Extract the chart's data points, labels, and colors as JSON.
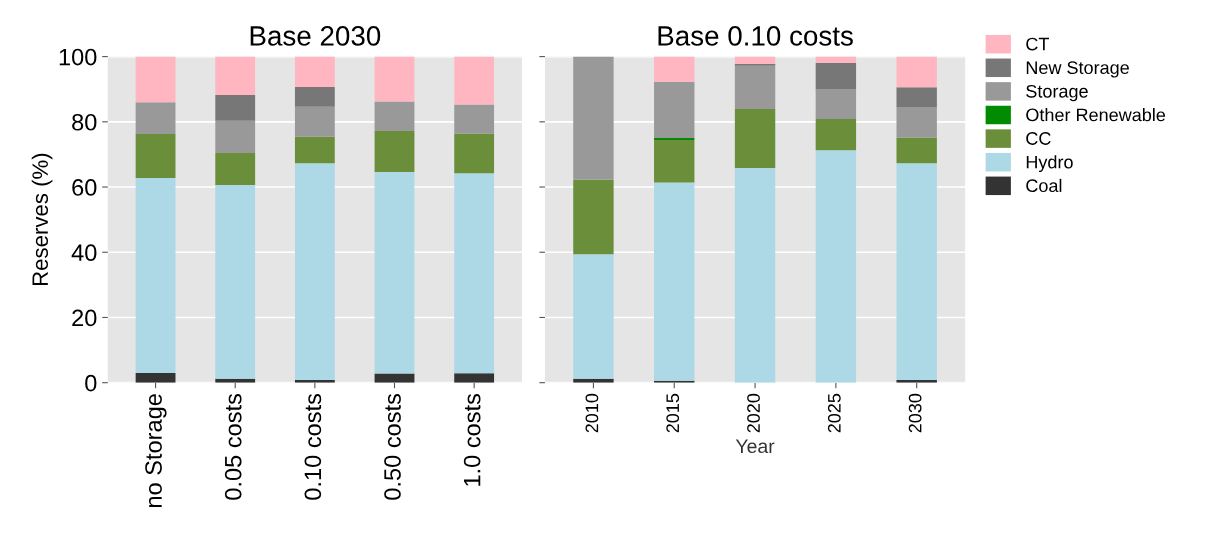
{
  "chart_data": [
    {
      "type": "bar",
      "stacked": true,
      "title": "Base 2030",
      "ylabel": "Reserves (%)",
      "categories": [
        "no Storage",
        "0.05 costs",
        "0.10 costs",
        "0.50 costs",
        "1.0 costs"
      ],
      "ylim": [
        0,
        100
      ],
      "yticks": [
        0,
        20,
        40,
        60,
        80,
        100
      ],
      "grid": true,
      "series": [
        {
          "color": "#333333",
          "values": [
            3.0,
            1.2,
            0.8,
            2.8,
            2.9
          ]
        },
        {
          "color": "#add8e6",
          "values": [
            59.8,
            59.4,
            66.5,
            61.8,
            61.3
          ]
        },
        {
          "color": "#6b8e3a",
          "values": [
            13.5,
            9.8,
            8.1,
            12.6,
            12.2
          ]
        },
        {
          "color": "#008b00",
          "values": [
            0,
            0,
            0,
            0,
            0
          ]
        },
        {
          "color": "#999999",
          "values": [
            9.7,
            9.9,
            9.2,
            9.0,
            8.9
          ]
        },
        {
          "color": "#777777",
          "values": [
            0,
            7.9,
            6.1,
            0,
            0
          ]
        },
        {
          "color": "#ffb6c1",
          "values": [
            14.0,
            11.8,
            9.3,
            13.8,
            14.7
          ]
        }
      ]
    },
    {
      "type": "bar",
      "stacked": true,
      "title": "Base 0.10 costs",
      "xlabel": "Year",
      "categories": [
        "2010",
        "2015",
        "2020",
        "2025",
        "2030"
      ],
      "ylim": [
        0,
        100
      ],
      "yticks": [
        0,
        20,
        40,
        60,
        80,
        100
      ],
      "grid": true,
      "legend": "right",
      "tick_labels": "x",
      "series": [
        {
          "name": "Coal",
          "color": "#333333",
          "values": [
            1.2,
            0.6,
            0,
            0,
            0.8
          ]
        },
        {
          "name": "Hydro",
          "color": "#add8e6",
          "values": [
            38.2,
            60.8,
            65.8,
            71.3,
            66.5
          ]
        },
        {
          "name": "CC",
          "color": "#6b8e3a",
          "values": [
            22.8,
            13.0,
            18.1,
            9.6,
            7.9
          ]
        },
        {
          "name": "Other Renewable",
          "color": "#008b00",
          "values": [
            0,
            0.6,
            0,
            0,
            0
          ]
        },
        {
          "name": "Storage",
          "color": "#999999",
          "values": [
            37.8,
            17.3,
            13.3,
            9.0,
            9.2
          ]
        },
        {
          "name": "New Storage",
          "color": "#777777",
          "values": [
            0,
            0,
            0.5,
            8.1,
            6.2
          ]
        },
        {
          "name": "CT",
          "color": "#ffb6c1",
          "values": [
            0,
            7.7,
            2.3,
            2.0,
            9.4
          ]
        }
      ]
    }
  ]
}
